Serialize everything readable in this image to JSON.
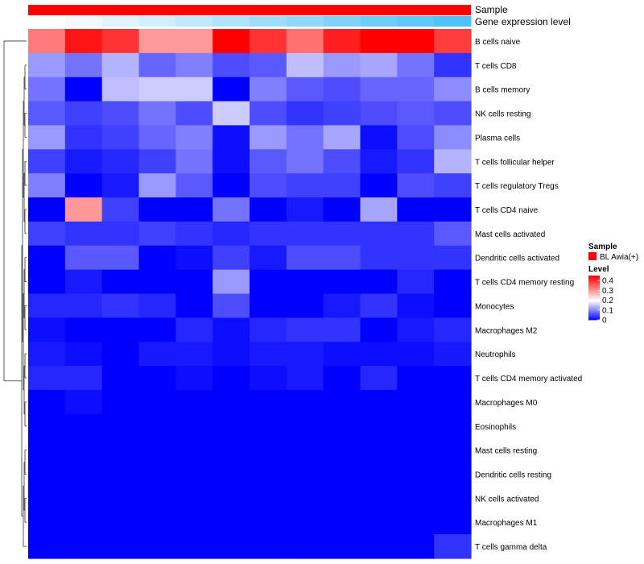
{
  "chart_data": {
    "type": "heatmap",
    "title": "",
    "annotation_tracks": [
      {
        "name": "Sample"
      },
      {
        "name": "Gene expression level"
      }
    ],
    "rows": [
      "B cells naive",
      "T cells CD8",
      "B cells memory",
      "NK cells resting",
      "Plasma cells",
      "T cells follicular helper",
      "T cells regulatory  Tregs",
      "T cells CD4 naive",
      "Mast cells activated",
      "Dendritic cells activated",
      "T cells CD4 memory resting",
      "Monocytes",
      "Macrophages M2",
      "Neutrophils",
      "T cells CD4 memory activated",
      "Macrophages M0",
      "Eosinophils",
      "Mast cells resting",
      "Dendritic cells resting",
      "NK cells activated",
      "Macrophages M1",
      "T cells gamma delta"
    ],
    "values": [
      [
        0.33,
        0.43,
        0.4,
        0.3,
        0.3,
        0.45,
        0.4,
        0.34,
        0.42,
        0.45,
        0.45,
        0.39
      ],
      [
        0.12,
        0.09,
        0.14,
        0.08,
        0.1,
        0.06,
        0.07,
        0.15,
        0.12,
        0.13,
        0.09,
        0.04
      ],
      [
        0.09,
        0.0,
        0.15,
        0.16,
        0.16,
        0.0,
        0.1,
        0.07,
        0.06,
        0.08,
        0.08,
        0.11
      ],
      [
        0.07,
        0.05,
        0.06,
        0.09,
        0.06,
        0.16,
        0.06,
        0.04,
        0.05,
        0.06,
        0.07,
        0.06
      ],
      [
        0.12,
        0.04,
        0.05,
        0.08,
        0.1,
        0.01,
        0.12,
        0.09,
        0.13,
        0.01,
        0.06,
        0.11
      ],
      [
        0.05,
        0.02,
        0.03,
        0.05,
        0.09,
        0.01,
        0.07,
        0.09,
        0.06,
        0.02,
        0.04,
        0.14
      ],
      [
        0.1,
        0.0,
        0.02,
        0.12,
        0.07,
        0.0,
        0.06,
        0.05,
        0.05,
        0.0,
        0.06,
        0.05
      ],
      [
        0.0,
        0.3,
        0.05,
        0.0,
        0.0,
        0.09,
        0.0,
        0.02,
        0.0,
        0.13,
        0.0,
        0.0
      ],
      [
        0.05,
        0.04,
        0.04,
        0.05,
        0.04,
        0.03,
        0.04,
        0.04,
        0.04,
        0.04,
        0.04,
        0.07
      ],
      [
        0.0,
        0.07,
        0.07,
        0.0,
        0.01,
        0.05,
        0.02,
        0.06,
        0.06,
        0.04,
        0.04,
        0.04
      ],
      [
        0.0,
        0.02,
        0.0,
        0.0,
        0.0,
        0.12,
        0.0,
        0.0,
        0.0,
        0.0,
        0.03,
        0.0
      ],
      [
        0.03,
        0.03,
        0.04,
        0.03,
        0.0,
        0.06,
        0.0,
        0.0,
        0.02,
        0.04,
        0.01,
        0.0
      ],
      [
        0.01,
        0.0,
        0.0,
        0.0,
        0.03,
        0.01,
        0.03,
        0.04,
        0.04,
        0.0,
        0.02,
        0.03
      ],
      [
        0.02,
        0.01,
        0.0,
        0.02,
        0.02,
        0.01,
        0.02,
        0.02,
        0.01,
        0.01,
        0.01,
        0.02
      ],
      [
        0.03,
        0.03,
        0.0,
        0.0,
        0.01,
        0.0,
        0.01,
        0.02,
        0.0,
        0.03,
        0.0,
        0.0
      ],
      [
        0.0,
        0.01,
        0.0,
        0.0,
        0.0,
        0.0,
        0.0,
        0.0,
        0.0,
        0.0,
        0.0,
        0.0
      ],
      [
        0.0,
        0.0,
        0.0,
        0.0,
        0.0,
        0.0,
        0.0,
        0.0,
        0.0,
        0.0,
        0.0,
        0.0
      ],
      [
        0.0,
        0.0,
        0.0,
        0.0,
        0.0,
        0.0,
        0.0,
        0.0,
        0.0,
        0.0,
        0.0,
        0.0
      ],
      [
        0.0,
        0.0,
        0.0,
        0.0,
        0.0,
        0.0,
        0.0,
        0.0,
        0.0,
        0.0,
        0.0,
        0.0
      ],
      [
        0.0,
        0.0,
        0.0,
        0.0,
        0.0,
        0.0,
        0.0,
        0.0,
        0.0,
        0.0,
        0.0,
        0.0
      ],
      [
        0.0,
        0.0,
        0.0,
        0.0,
        0.0,
        0.0,
        0.0,
        0.0,
        0.0,
        0.0,
        0.0,
        0.0
      ],
      [
        0.0,
        0.0,
        0.0,
        0.0,
        0.0,
        0.0,
        0.0,
        0.0,
        0.0,
        0.0,
        0.0,
        0.04
      ]
    ],
    "color_scale": {
      "min": 0,
      "max": 0.45,
      "low": "#0000ff",
      "mid": "#ffffff",
      "mid_value": 0.2,
      "high": "#ff0000"
    },
    "legend": {
      "sample_title": "Sample",
      "sample_entries": [
        {
          "label": "BL Awia(+)",
          "color": "#ff0000"
        }
      ],
      "level_title": "Level",
      "level_ticks": [
        0,
        0.1,
        0.2,
        0.3,
        0.4
      ],
      "level_tick_labels": [
        "0",
        "0.1",
        "0.2",
        "0.3",
        "0.4"
      ],
      "placement": "right"
    },
    "annotation_colors": {
      "sample": "#ff0000",
      "gene_expression_gradient": [
        "#ffffff",
        "#4fc3f7"
      ]
    },
    "row_dendrogram": true,
    "grid": false
  }
}
